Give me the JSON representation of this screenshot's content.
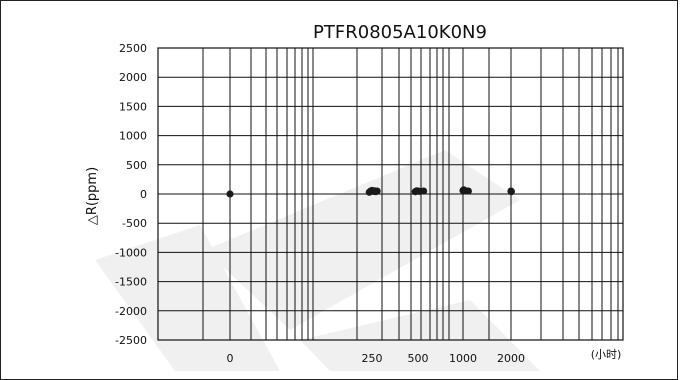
{
  "chart_data": {
    "type": "scatter",
    "title": "PTFR0805A10K0N9",
    "ylabel": "△R(ppm)",
    "xlabel": "(小时)",
    "x_scale": "log",
    "ylim": [
      -2500,
      2500
    ],
    "y_ticks": [
      "2500",
      "2000",
      "1500",
      "1000",
      "500",
      "0",
      "-500",
      "-1000",
      "-1500",
      "-2000",
      "-2500"
    ],
    "x_tick_labels": [
      {
        "label": "0",
        "value": 0
      },
      {
        "label": "250",
        "value": 250
      },
      {
        "label": "500",
        "value": 500
      },
      {
        "label": "1000",
        "value": 1000
      },
      {
        "label": "2000",
        "value": 2000
      }
    ],
    "grid": true,
    "series": [
      {
        "color": "#1a1a1a",
        "points": [
          {
            "x": 0,
            "y": 0
          },
          {
            "x": 240,
            "y": 30
          },
          {
            "x": 245,
            "y": 50
          },
          {
            "x": 250,
            "y": 60
          },
          {
            "x": 255,
            "y": 45
          },
          {
            "x": 260,
            "y": 55
          },
          {
            "x": 265,
            "y": 40
          },
          {
            "x": 270,
            "y": 50
          },
          {
            "x": 480,
            "y": 40
          },
          {
            "x": 490,
            "y": 55
          },
          {
            "x": 500,
            "y": 50
          },
          {
            "x": 510,
            "y": 45
          },
          {
            "x": 545,
            "y": 50
          },
          {
            "x": 1000,
            "y": 60
          },
          {
            "x": 1010,
            "y": 70
          },
          {
            "x": 1040,
            "y": 55
          },
          {
            "x": 1080,
            "y": 50
          },
          {
            "x": 2000,
            "y": 50
          },
          {
            "x": 2010,
            "y": 40
          }
        ]
      }
    ]
  }
}
